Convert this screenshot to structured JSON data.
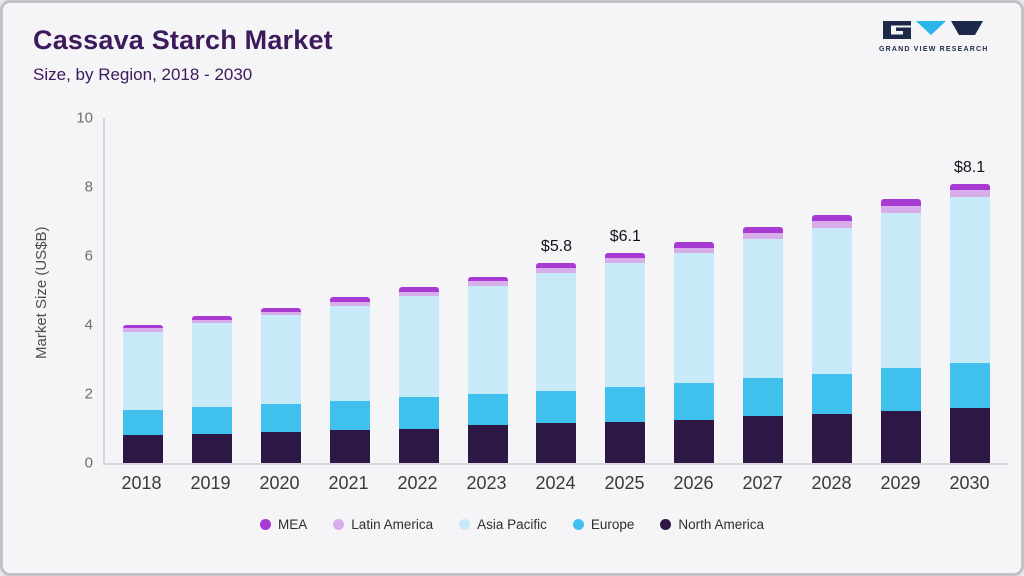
{
  "header": {
    "title": "Cassava Starch Market",
    "subtitle": "Size, by Region, 2018 - 2030"
  },
  "logo": {
    "text": "GRAND VIEW RESEARCH"
  },
  "chart_data": {
    "type": "bar",
    "stacked": true,
    "title": "Cassava Starch Market Size, by Region, 2018 - 2030",
    "ylabel": "Market Size (US$B)",
    "ylim": [
      0,
      10
    ],
    "yticks": [
      0,
      2,
      4,
      6,
      8,
      10
    ],
    "grid": false,
    "legend_position": "bottom",
    "categories": [
      "2018",
      "2019",
      "2020",
      "2021",
      "2022",
      "2023",
      "2024",
      "2025",
      "2026",
      "2027",
      "2028",
      "2029",
      "2030"
    ],
    "series": [
      {
        "name": "North America",
        "color": "#2c1745",
        "values": [
          0.8,
          0.85,
          0.9,
          0.95,
          1.0,
          1.1,
          1.15,
          1.2,
          1.25,
          1.35,
          1.42,
          1.5,
          1.6
        ]
      },
      {
        "name": "Europe",
        "color": "#3fc0ed",
        "values": [
          0.75,
          0.78,
          0.8,
          0.85,
          0.9,
          0.9,
          0.95,
          1.0,
          1.08,
          1.12,
          1.16,
          1.25,
          1.3
        ]
      },
      {
        "name": "Asia Pacific",
        "color": "#c8e9f8",
        "values": [
          2.25,
          2.42,
          2.58,
          2.76,
          2.94,
          3.14,
          3.4,
          3.6,
          3.75,
          4.02,
          4.24,
          4.5,
          4.8
        ]
      },
      {
        "name": "Latin America",
        "color": "#d7aeea",
        "values": [
          0.1,
          0.1,
          0.11,
          0.12,
          0.13,
          0.13,
          0.15,
          0.15,
          0.16,
          0.18,
          0.19,
          0.2,
          0.2
        ]
      },
      {
        "name": "MEA",
        "color": "#a83ad4",
        "values": [
          0.1,
          0.1,
          0.11,
          0.12,
          0.13,
          0.13,
          0.15,
          0.15,
          0.16,
          0.18,
          0.19,
          0.2,
          0.2
        ]
      }
    ],
    "totals": [
      4.0,
      4.25,
      4.5,
      4.8,
      5.1,
      5.4,
      5.8,
      6.1,
      6.4,
      6.85,
      7.2,
      7.65,
      8.1
    ],
    "annotations": {
      "2024": "$5.8",
      "2025": "$6.1",
      "2030": "$8.1"
    },
    "legend": [
      {
        "label": "MEA",
        "color": "#a83ad4"
      },
      {
        "label": "Latin America",
        "color": "#d7aeea"
      },
      {
        "label": "Asia Pacific",
        "color": "#c8e9f8"
      },
      {
        "label": "Europe",
        "color": "#3fc0ed"
      },
      {
        "label": "North America",
        "color": "#2c1745"
      }
    ]
  }
}
